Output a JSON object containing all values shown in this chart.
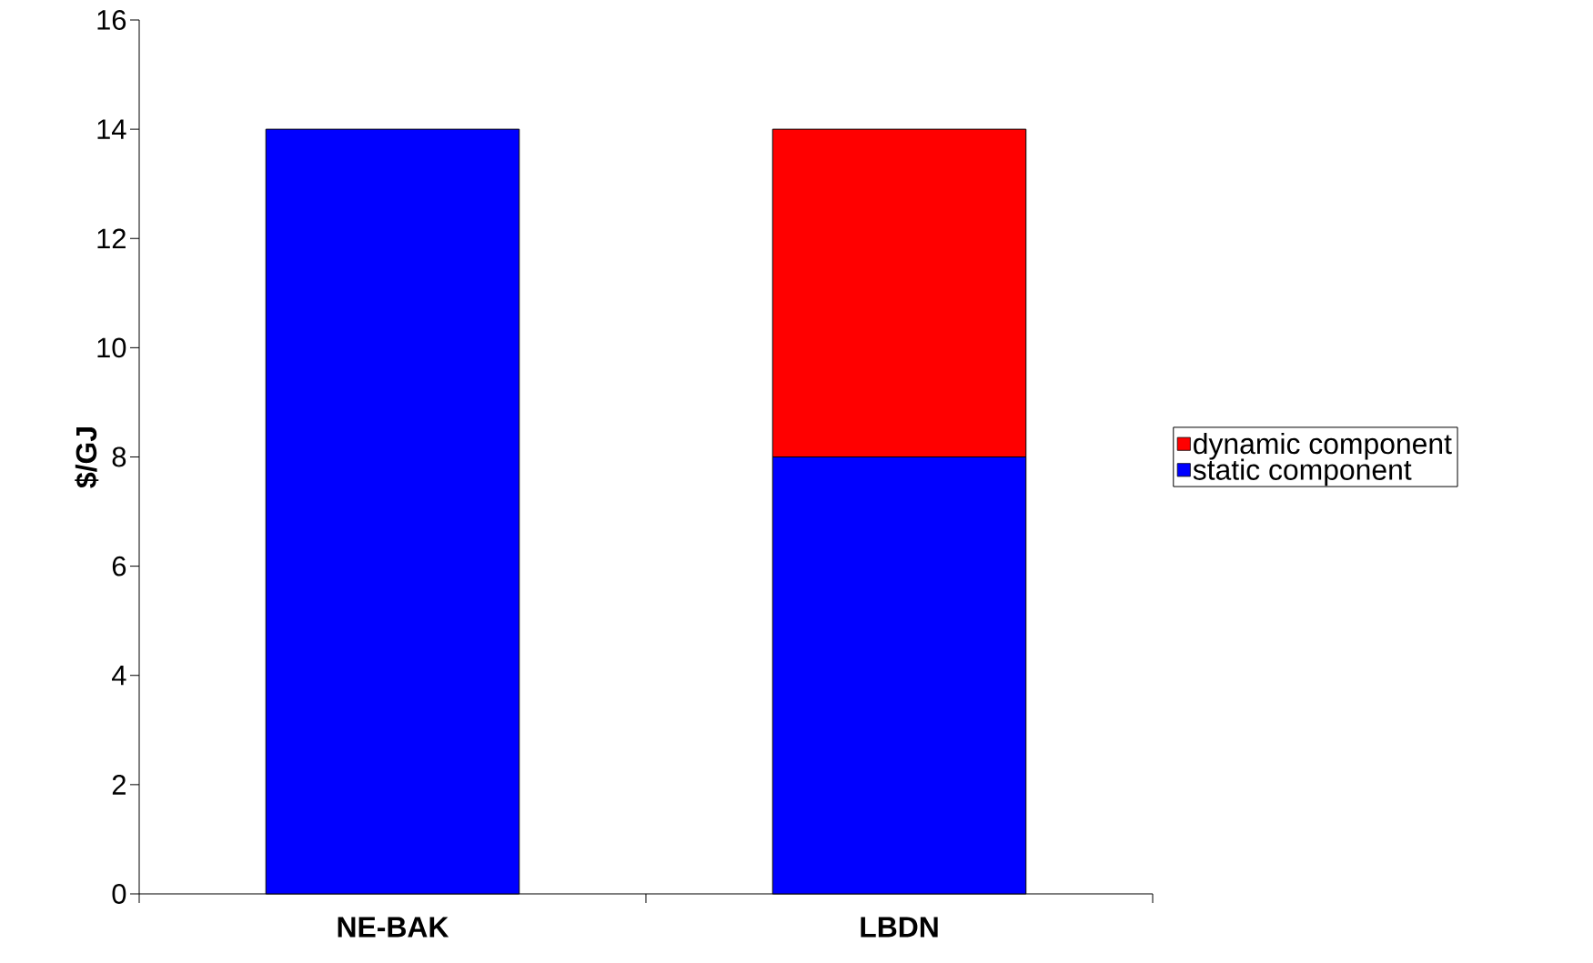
{
  "chart_data": {
    "type": "bar",
    "stacked": true,
    "ylabel": "**$/GJ**",
    "categories": [
      "**NE-BAK**",
      "**LBDN**"
    ],
    "series": [
      {
        "name": "static component",
        "color": "#0000ff",
        "values": [
          14,
          8
        ]
      },
      {
        "name": "dynamic component",
        "color": "#ff0000",
        "values": [
          0,
          6
        ]
      }
    ],
    "ylim": [
      0,
      16
    ],
    "yticks": [
      0,
      2,
      4,
      6,
      8,
      10,
      12,
      14,
      16
    ],
    "grid": false,
    "legend": "right"
  }
}
